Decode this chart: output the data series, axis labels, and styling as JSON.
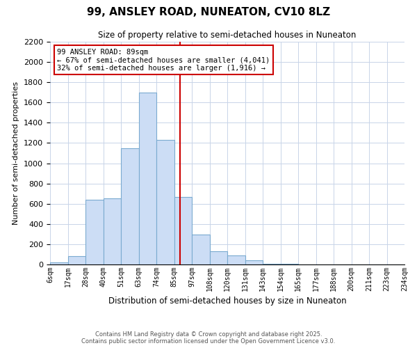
{
  "title": "99, ANSLEY ROAD, NUNEATON, CV10 8LZ",
  "subtitle": "Size of property relative to semi-detached houses in Nuneaton",
  "xlabel": "Distribution of semi-detached houses by size in Nuneaton",
  "ylabel": "Number of semi-detached properties",
  "bar_color": "#ccddf5",
  "bar_edge_color": "#7aaad0",
  "background_color": "#ffffff",
  "grid_color": "#c8d4e8",
  "bin_labels": [
    "6sqm",
    "17sqm",
    "28sqm",
    "40sqm",
    "51sqm",
    "63sqm",
    "74sqm",
    "85sqm",
    "97sqm",
    "108sqm",
    "120sqm",
    "131sqm",
    "143sqm",
    "154sqm",
    "165sqm",
    "177sqm",
    "188sqm",
    "200sqm",
    "211sqm",
    "223sqm",
    "234sqm"
  ],
  "bar_heights": [
    20,
    80,
    640,
    650,
    1150,
    1700,
    1230,
    670,
    295,
    130,
    90,
    40,
    10,
    5,
    2,
    1,
    0,
    0,
    0,
    0
  ],
  "property_label": "99 ANSLEY ROAD: 89sqm",
  "pct_smaller": 67,
  "n_smaller": 4041,
  "pct_larger": 32,
  "n_larger": 1916,
  "vline_x_bin_idx": 7,
  "vline_color": "#cc0000",
  "ylim": [
    0,
    2200
  ],
  "yticks": [
    0,
    200,
    400,
    600,
    800,
    1000,
    1200,
    1400,
    1600,
    1800,
    2000,
    2200
  ],
  "annotation_box_color": "#ffffff",
  "annotation_box_edge": "#cc0000",
  "footer_line1": "Contains HM Land Registry data © Crown copyright and database right 2025.",
  "footer_line2": "Contains public sector information licensed under the Open Government Licence v3.0."
}
